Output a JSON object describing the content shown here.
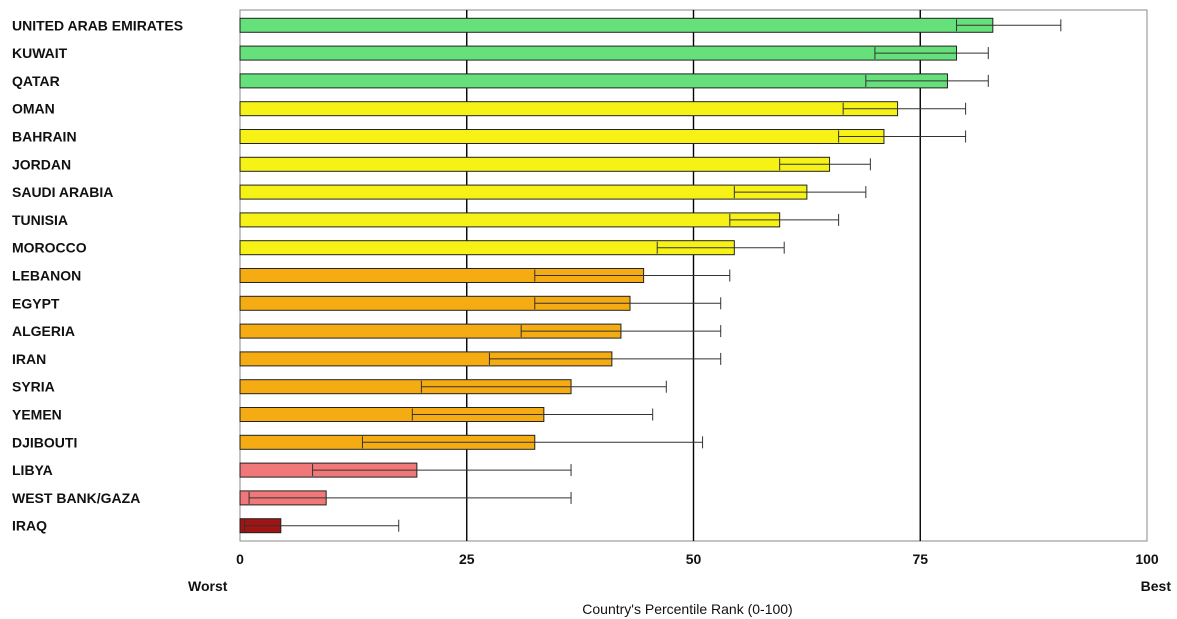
{
  "chart_data": {
    "type": "bar",
    "orientation": "horizontal",
    "xlabel": "Country's Percentile Rank (0-100)",
    "xlim": [
      0,
      100
    ],
    "xticks": [
      "0",
      "25",
      "50",
      "75",
      "100"
    ],
    "axis_end_labels": {
      "left": "Worst",
      "right": "Best"
    },
    "grid": "vertical lines at 25, 50, 75",
    "error_bars": true,
    "colors": {
      "green": "#66e07a",
      "yellow": "#f7f216",
      "orange": "#f5ab12",
      "pink": "#f07878",
      "darkred": "#a01414"
    },
    "bars": [
      {
        "category": "UNITED ARAB EMIRATES",
        "value": 83,
        "err_low": 79,
        "err_high": 90.5,
        "color": "green"
      },
      {
        "category": "KUWAIT",
        "value": 79,
        "err_low": 70,
        "err_high": 82.5,
        "color": "green"
      },
      {
        "category": "QATAR",
        "value": 78,
        "err_low": 69,
        "err_high": 82.5,
        "color": "green"
      },
      {
        "category": "OMAN",
        "value": 72.5,
        "err_low": 66.5,
        "err_high": 80,
        "color": "yellow"
      },
      {
        "category": "BAHRAIN",
        "value": 71,
        "err_low": 66,
        "err_high": 80,
        "color": "yellow"
      },
      {
        "category": "JORDAN",
        "value": 65,
        "err_low": 59.5,
        "err_high": 69.5,
        "color": "yellow"
      },
      {
        "category": "SAUDI ARABIA",
        "value": 62.5,
        "err_low": 54.5,
        "err_high": 69,
        "color": "yellow"
      },
      {
        "category": "TUNISIA",
        "value": 59.5,
        "err_low": 54,
        "err_high": 66,
        "color": "yellow"
      },
      {
        "category": "MOROCCO",
        "value": 54.5,
        "err_low": 46,
        "err_high": 60,
        "color": "yellow"
      },
      {
        "category": "LEBANON",
        "value": 44.5,
        "err_low": 32.5,
        "err_high": 54,
        "color": "orange"
      },
      {
        "category": "EGYPT",
        "value": 43,
        "err_low": 32.5,
        "err_high": 53,
        "color": "orange"
      },
      {
        "category": "ALGERIA",
        "value": 42,
        "err_low": 31,
        "err_high": 53,
        "color": "orange"
      },
      {
        "category": "IRAN",
        "value": 41,
        "err_low": 27.5,
        "err_high": 53,
        "color": "orange"
      },
      {
        "category": "SYRIA",
        "value": 36.5,
        "err_low": 20,
        "err_high": 47,
        "color": "orange"
      },
      {
        "category": "YEMEN",
        "value": 33.5,
        "err_low": 19,
        "err_high": 45.5,
        "color": "orange"
      },
      {
        "category": "DJIBOUTI",
        "value": 32.5,
        "err_low": 13.5,
        "err_high": 51,
        "color": "orange"
      },
      {
        "category": "LIBYA",
        "value": 19.5,
        "err_low": 8,
        "err_high": 36.5,
        "color": "pink"
      },
      {
        "category": "WEST BANK/GAZA",
        "value": 9.5,
        "err_low": 1,
        "err_high": 36.5,
        "color": "pink"
      },
      {
        "category": "IRAQ",
        "value": 4.5,
        "err_low": 0.5,
        "err_high": 17.5,
        "color": "darkred"
      }
    ]
  }
}
